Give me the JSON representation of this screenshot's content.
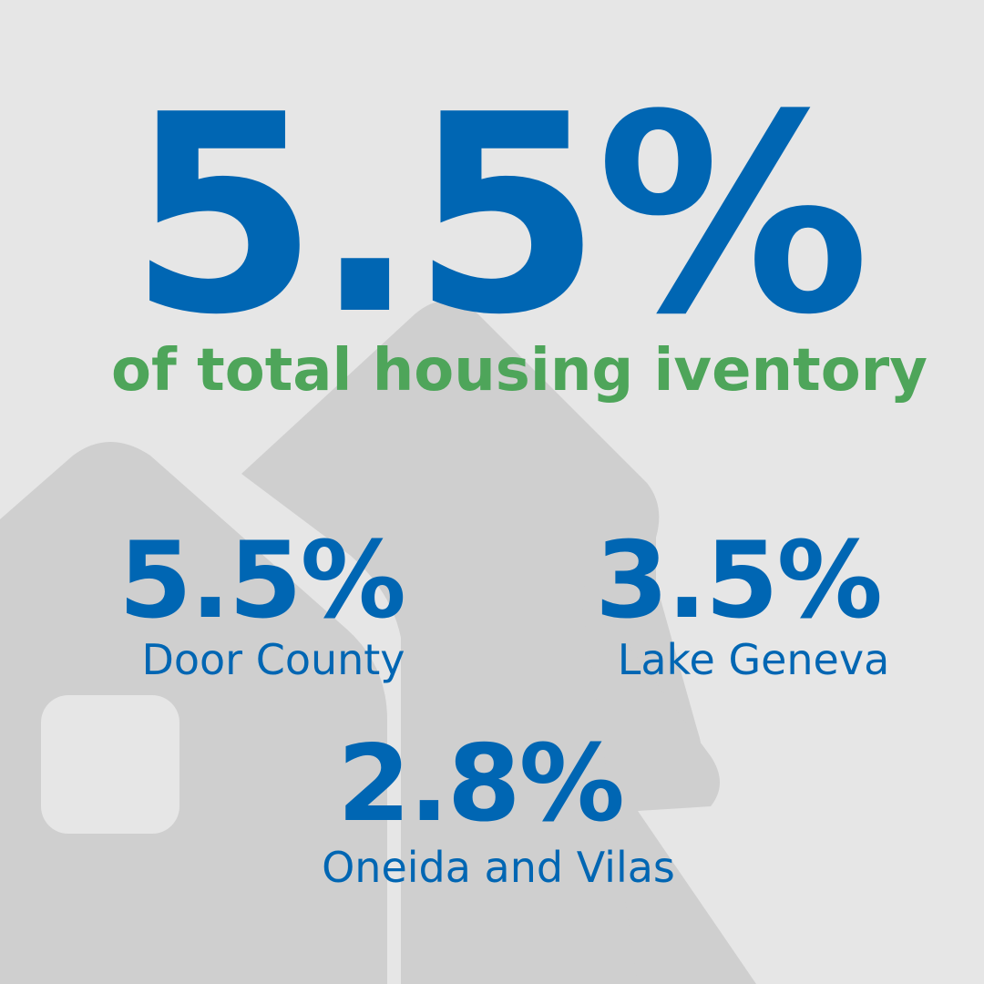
{
  "headline": {
    "value": "5.5%",
    "caption": "of total housing iventory"
  },
  "stats": [
    {
      "value": "5.5%",
      "label": "Door County"
    },
    {
      "value": "3.5%",
      "label": "Lake Geneva"
    },
    {
      "value": "2.8%",
      "label": "Oneida and Vilas"
    }
  ]
}
